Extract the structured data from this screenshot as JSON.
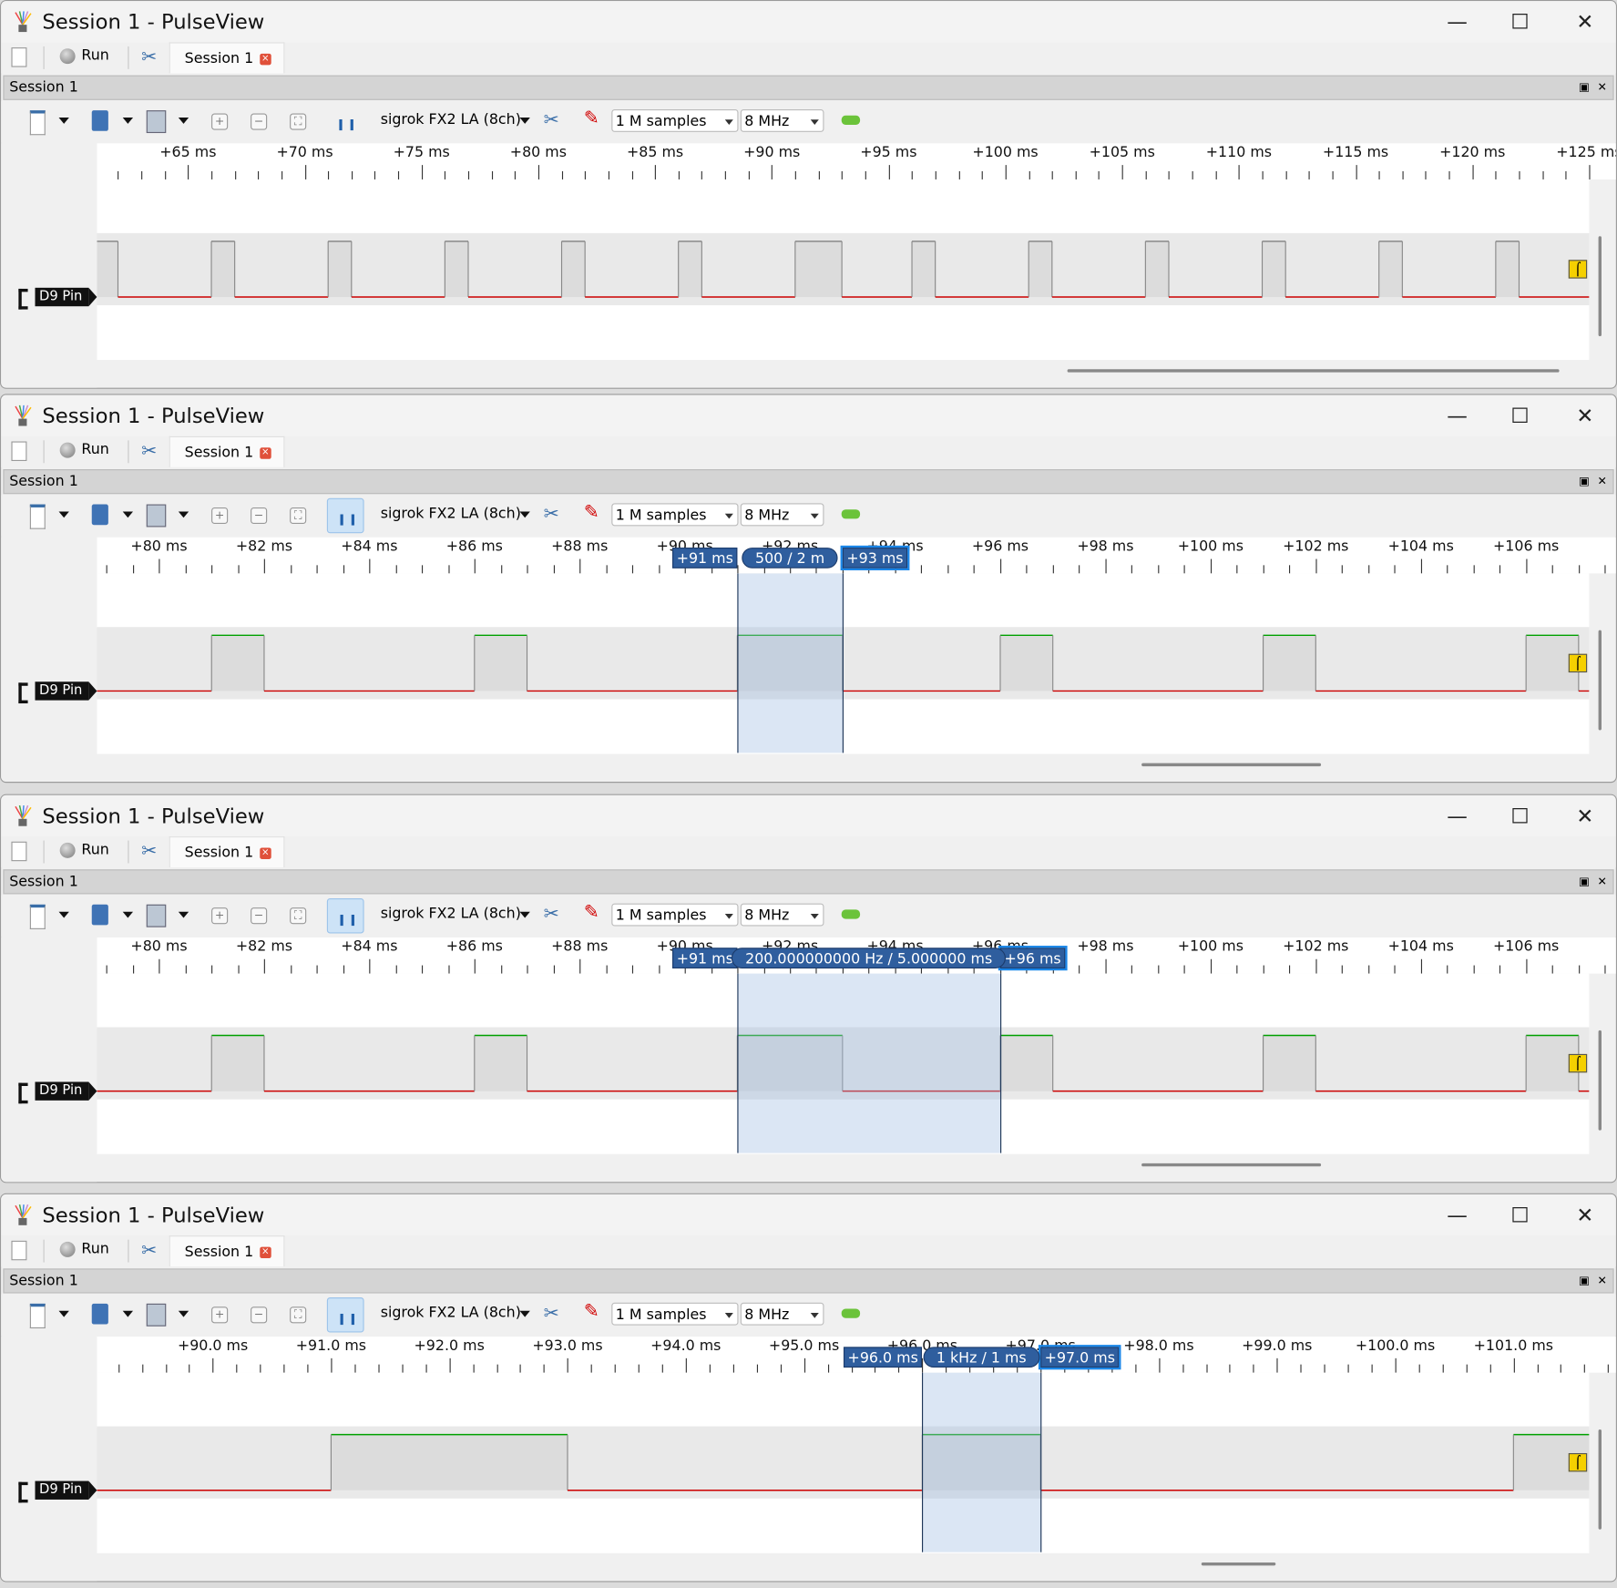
{
  "window": {
    "title": "Session 1 - PulseView",
    "minimize": "—",
    "maximize": "☐",
    "close": "✕"
  },
  "tabbar": {
    "run_label": "Run",
    "tab_label": "Session 1",
    "tab_close": "×"
  },
  "dock": {
    "title": "Session 1",
    "float": "▣",
    "close": "✕"
  },
  "toolbar": {
    "device": "sigrok FX2 LA (8ch)",
    "samples": "1 M samples",
    "samplerate": "8 MHz"
  },
  "channel": {
    "name": "D9 Pin",
    "low_color": "#cc0000",
    "high_color": "#00a000"
  },
  "colors": {
    "selection": "#aac0e0",
    "cursor_flag": "#2f5e9e"
  },
  "panels": [
    {
      "cursor_tool_active": false,
      "view_ms": [
        61.1,
        125.0
      ],
      "ruler": {
        "major_ms": [
          65,
          70,
          75,
          80,
          85,
          90,
          95,
          100,
          105,
          110,
          115,
          120,
          125
        ],
        "labels": [
          "+65 ms",
          "+70 ms",
          "+75 ms",
          "+80 ms",
          "+85 ms",
          "+90 ms",
          "+95 ms",
          "+100 ms",
          "+105 ms",
          "+110 ms",
          "+115 ms",
          "+120 ms",
          "+125 ms"
        ],
        "minor_step_ms": 1
      },
      "high_intervals_ms": [
        [
          61,
          62
        ],
        [
          66,
          67
        ],
        [
          71,
          72
        ],
        [
          76,
          77
        ],
        [
          81,
          82
        ],
        [
          86,
          87
        ],
        [
          91,
          93
        ],
        [
          96,
          97
        ],
        [
          101,
          102
        ],
        [
          106,
          107
        ],
        [
          111,
          112
        ],
        [
          116,
          117
        ],
        [
          121,
          122
        ]
      ],
      "high_color": "#888888",
      "cursors": null,
      "hscroll": [
        0.65,
        0.98
      ]
    },
    {
      "cursor_tool_active": true,
      "view_ms": [
        78.82,
        107.2
      ],
      "ruler": {
        "major_ms": [
          80,
          82,
          84,
          86,
          88,
          90,
          92,
          94,
          96,
          98,
          100,
          102,
          104,
          106
        ],
        "labels": [
          "+80 ms",
          "+82 ms",
          "+84 ms",
          "+86 ms",
          "+88 ms",
          "+90 ms",
          "+92 ms",
          "+94 ms",
          "+96 ms",
          "+98 ms",
          "+100 ms",
          "+102 ms",
          "+104 ms",
          "+106 ms"
        ],
        "minor_step_ms": 0.5
      },
      "high_intervals_ms": [
        [
          81,
          82
        ],
        [
          86,
          87
        ],
        [
          91,
          93
        ],
        [
          96,
          97
        ],
        [
          101,
          102
        ],
        [
          106,
          107
        ]
      ],
      "high_color": "#00a000",
      "cursors": {
        "a_ms": 91,
        "b_ms": 93,
        "a_label": "+91 ms",
        "b_label": "+93 ms",
        "measure": "500  / 2 m"
      },
      "hscroll": [
        0.7,
        0.82
      ]
    },
    {
      "cursor_tool_active": true,
      "view_ms": [
        78.82,
        107.2
      ],
      "ruler": {
        "major_ms": [
          80,
          82,
          84,
          86,
          88,
          90,
          92,
          94,
          96,
          98,
          100,
          102,
          104,
          106
        ],
        "labels": [
          "+80 ms",
          "+82 ms",
          "+84 ms",
          "+86 ms",
          "+88 ms",
          "+90 ms",
          "+92 ms",
          "+94 ms",
          "+96 ms",
          "+98 ms",
          "+100 ms",
          "+102 ms",
          "+104 ms",
          "+106 ms"
        ],
        "minor_step_ms": 0.5
      },
      "high_intervals_ms": [
        [
          81,
          82
        ],
        [
          86,
          87
        ],
        [
          91,
          93
        ],
        [
          96,
          97
        ],
        [
          101,
          102
        ],
        [
          106,
          107
        ]
      ],
      "high_color": "#00a000",
      "cursors": {
        "a_ms": 91,
        "b_ms": 96,
        "a_label": "+91 ms",
        "b_label": "+96 ms",
        "measure": "200.000000000 Hz / 5.000000 ms"
      },
      "hscroll": [
        0.7,
        0.82
      ]
    },
    {
      "cursor_tool_active": true,
      "view_ms": [
        89.02,
        101.64
      ],
      "ruler": {
        "major_ms": [
          90,
          91,
          92,
          93,
          94,
          95,
          96,
          97,
          98,
          99,
          100,
          101
        ],
        "labels": [
          "+90.0 ms",
          "+91.0 ms",
          "+92.0 ms",
          "+93.0 ms",
          "+94.0 ms",
          "+95.0 ms",
          "+96.0 ms",
          "+97.0 ms",
          "+98.0 ms",
          "+99.0 ms",
          "+100.0 ms",
          "+101.0 ms"
        ],
        "minor_step_ms": 0.2
      },
      "high_intervals_ms": [
        [
          91,
          93
        ],
        [
          96,
          97
        ],
        [
          101,
          101.64
        ]
      ],
      "high_color": "#00a000",
      "cursors": {
        "a_ms": 96,
        "b_ms": 97,
        "a_label": "+96.0 ms",
        "b_label": "+97.0 ms",
        "measure": "1 kHz / 1 ms"
      },
      "hscroll": [
        0.74,
        0.79
      ]
    }
  ]
}
